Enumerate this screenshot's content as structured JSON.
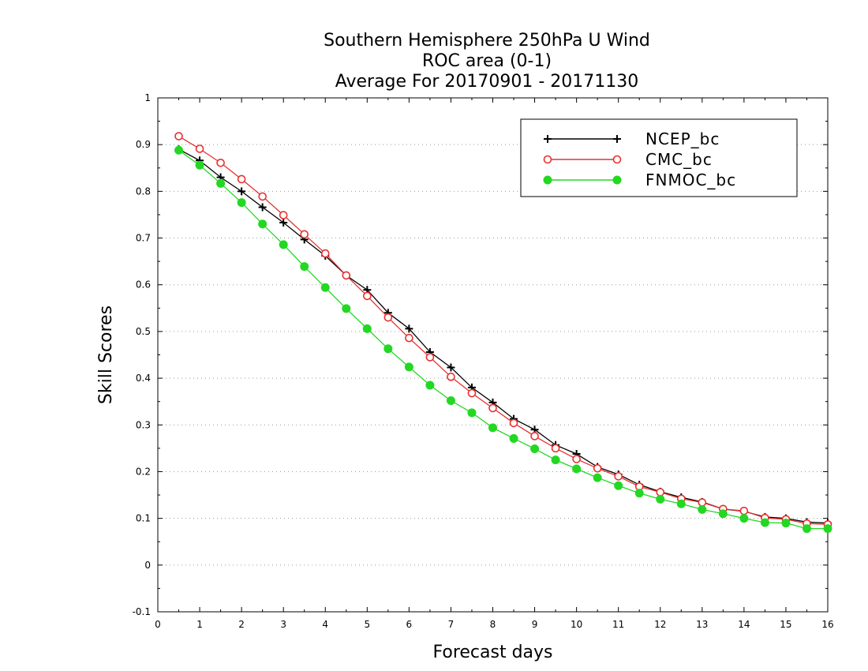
{
  "chart_data": {
    "type": "line",
    "title": [
      "Southern Hemisphere 250hPa U Wind",
      "ROC area (0-1)",
      "Average For 20170901 - 20171130"
    ],
    "xlabel": "Forecast days",
    "ylabel": "Skill Scores",
    "xlim": [
      0,
      16
    ],
    "ylim": [
      -0.1,
      1
    ],
    "xticks": [
      0,
      1,
      2,
      3,
      4,
      5,
      6,
      7,
      8,
      9,
      10,
      11,
      12,
      13,
      14,
      15,
      16
    ],
    "yticks": [
      -0.1,
      0,
      0.1,
      0.2,
      0.3,
      0.4,
      0.5,
      0.6,
      0.7,
      0.8,
      0.9,
      1
    ],
    "ytick_labels": [
      "-0.1",
      "0",
      "0.1",
      "0.2",
      "0.3",
      "0.4",
      "0.5",
      "0.6",
      "0.7",
      "0.8",
      "0.9",
      "1"
    ],
    "grid": "horizontal-dotted",
    "legend_position": "top-right",
    "x": [
      0.5,
      1,
      1.5,
      2,
      2.5,
      3,
      3.5,
      4,
      4.5,
      5,
      5.5,
      6,
      6.5,
      7,
      7.5,
      8,
      8.5,
      9,
      9.5,
      10,
      10.5,
      11,
      11.5,
      12,
      12.5,
      13,
      13.5,
      14,
      14.5,
      15,
      15.5,
      16
    ],
    "series": [
      {
        "name": "NCEP_bc",
        "color": "#000000",
        "marker": "plus",
        "values": [
          0.89,
          0.866,
          0.83,
          0.8,
          0.766,
          0.733,
          0.697,
          0.662,
          0.62,
          0.589,
          0.54,
          0.506,
          0.456,
          0.423,
          0.38,
          0.348,
          0.313,
          0.29,
          0.257,
          0.238,
          0.21,
          0.194,
          0.172,
          0.157,
          0.145,
          0.135,
          0.12,
          0.115,
          0.103,
          0.1,
          0.092,
          0.09
        ]
      },
      {
        "name": "CMC_bc",
        "color": "#e83030",
        "marker": "open-circle",
        "values": [
          0.918,
          0.891,
          0.861,
          0.826,
          0.789,
          0.749,
          0.708,
          0.667,
          0.62,
          0.576,
          0.53,
          0.486,
          0.445,
          0.403,
          0.368,
          0.336,
          0.304,
          0.276,
          0.25,
          0.227,
          0.207,
          0.19,
          0.168,
          0.156,
          0.142,
          0.134,
          0.12,
          0.116,
          0.101,
          0.098,
          0.089,
          0.087
        ]
      },
      {
        "name": "FNMOC_bc",
        "color": "#22d822",
        "marker": "filled-circle",
        "values": [
          0.888,
          0.856,
          0.817,
          0.776,
          0.73,
          0.686,
          0.639,
          0.594,
          0.549,
          0.506,
          0.463,
          0.424,
          0.385,
          0.352,
          0.326,
          0.294,
          0.271,
          0.249,
          0.225,
          0.206,
          0.187,
          0.17,
          0.154,
          0.141,
          0.131,
          0.119,
          0.11,
          0.1,
          0.091,
          0.09,
          0.078,
          0.078
        ]
      }
    ]
  }
}
